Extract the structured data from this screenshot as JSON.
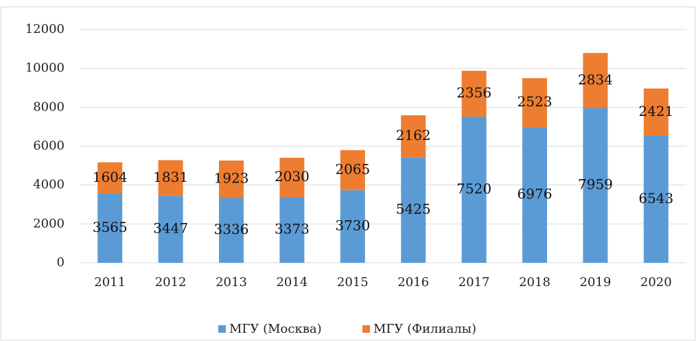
{
  "chart_data": {
    "type": "stacked_bar",
    "categories": [
      "2011",
      "2012",
      "2013",
      "2014",
      "2015",
      "2016",
      "2017",
      "2018",
      "2019",
      "2020"
    ],
    "series": [
      {
        "name": "МГУ (Москва)",
        "color": "#5b9bd5",
        "values": [
          3565,
          3447,
          3336,
          3373,
          3730,
          5425,
          7520,
          6976,
          7959,
          6543
        ]
      },
      {
        "name": "МГУ (Филиалы)",
        "color": "#ed7d31",
        "values": [
          1604,
          1831,
          1923,
          2030,
          2065,
          2162,
          2356,
          2523,
          2834,
          2421
        ]
      }
    ],
    "ylim": [
      0,
      12000
    ],
    "yticks": [
      0,
      2000,
      4000,
      6000,
      8000,
      10000,
      12000
    ],
    "grid": true,
    "legend": "bottom"
  }
}
